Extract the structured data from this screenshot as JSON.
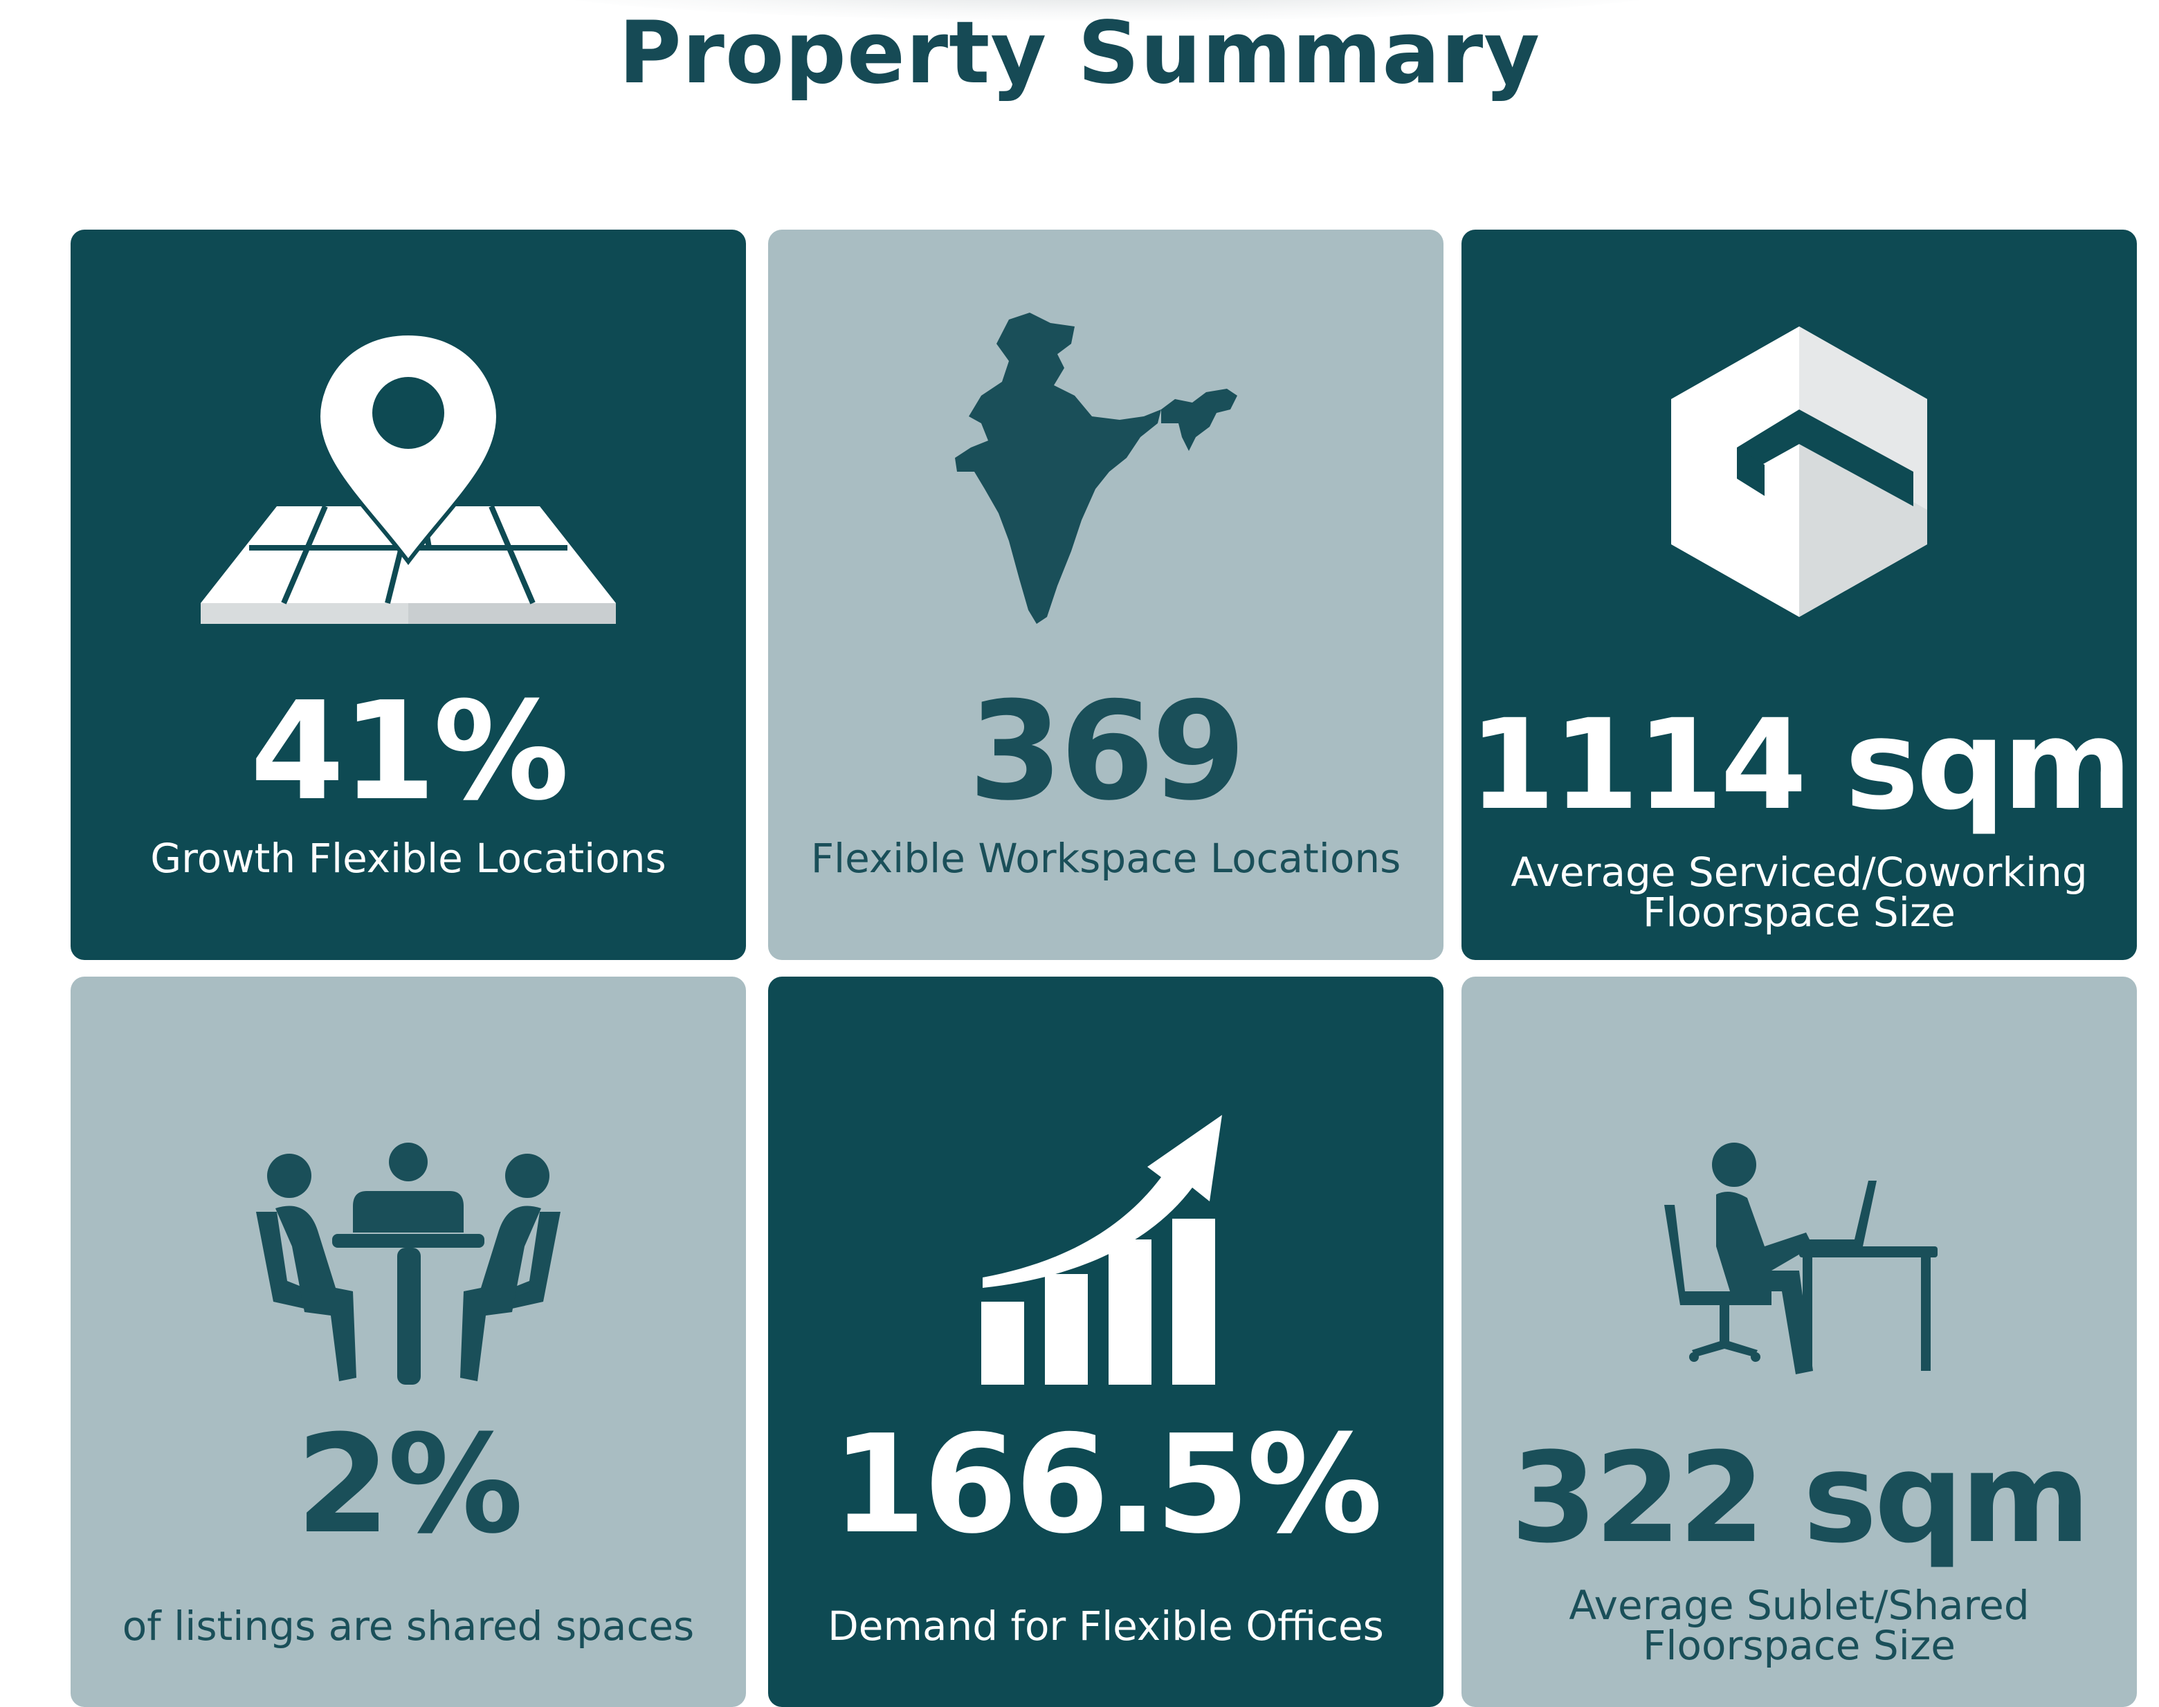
{
  "title": "Property Summary",
  "colors": {
    "title": "#164a55",
    "dark_card": "#0e4a53",
    "light_card": "#a9bdc2",
    "dark_text": "#ffffff",
    "light_text": "#1a4f59"
  },
  "cards": [
    {
      "icon": "map-pin-icon",
      "theme": "dark",
      "value": "41%",
      "label": "Growth Flexible Locations"
    },
    {
      "icon": "india-map-icon",
      "theme": "light",
      "value": "369",
      "label": "Flexible Workspace Locations"
    },
    {
      "icon": "cube-icon",
      "theme": "dark",
      "value": "1114 sqm",
      "label": "Average Serviced/Coworking Floorspace Size"
    },
    {
      "icon": "meeting-table-icon",
      "theme": "light",
      "value": "2%",
      "label": "of listings are shared spaces"
    },
    {
      "icon": "growth-chart-icon",
      "theme": "dark",
      "value": "166.5%",
      "label": "Demand for Flexible Offices"
    },
    {
      "icon": "desk-worker-icon",
      "theme": "light",
      "value": "322 sqm",
      "label": "Average Sublet/Shared Floorspace Size"
    }
  ]
}
